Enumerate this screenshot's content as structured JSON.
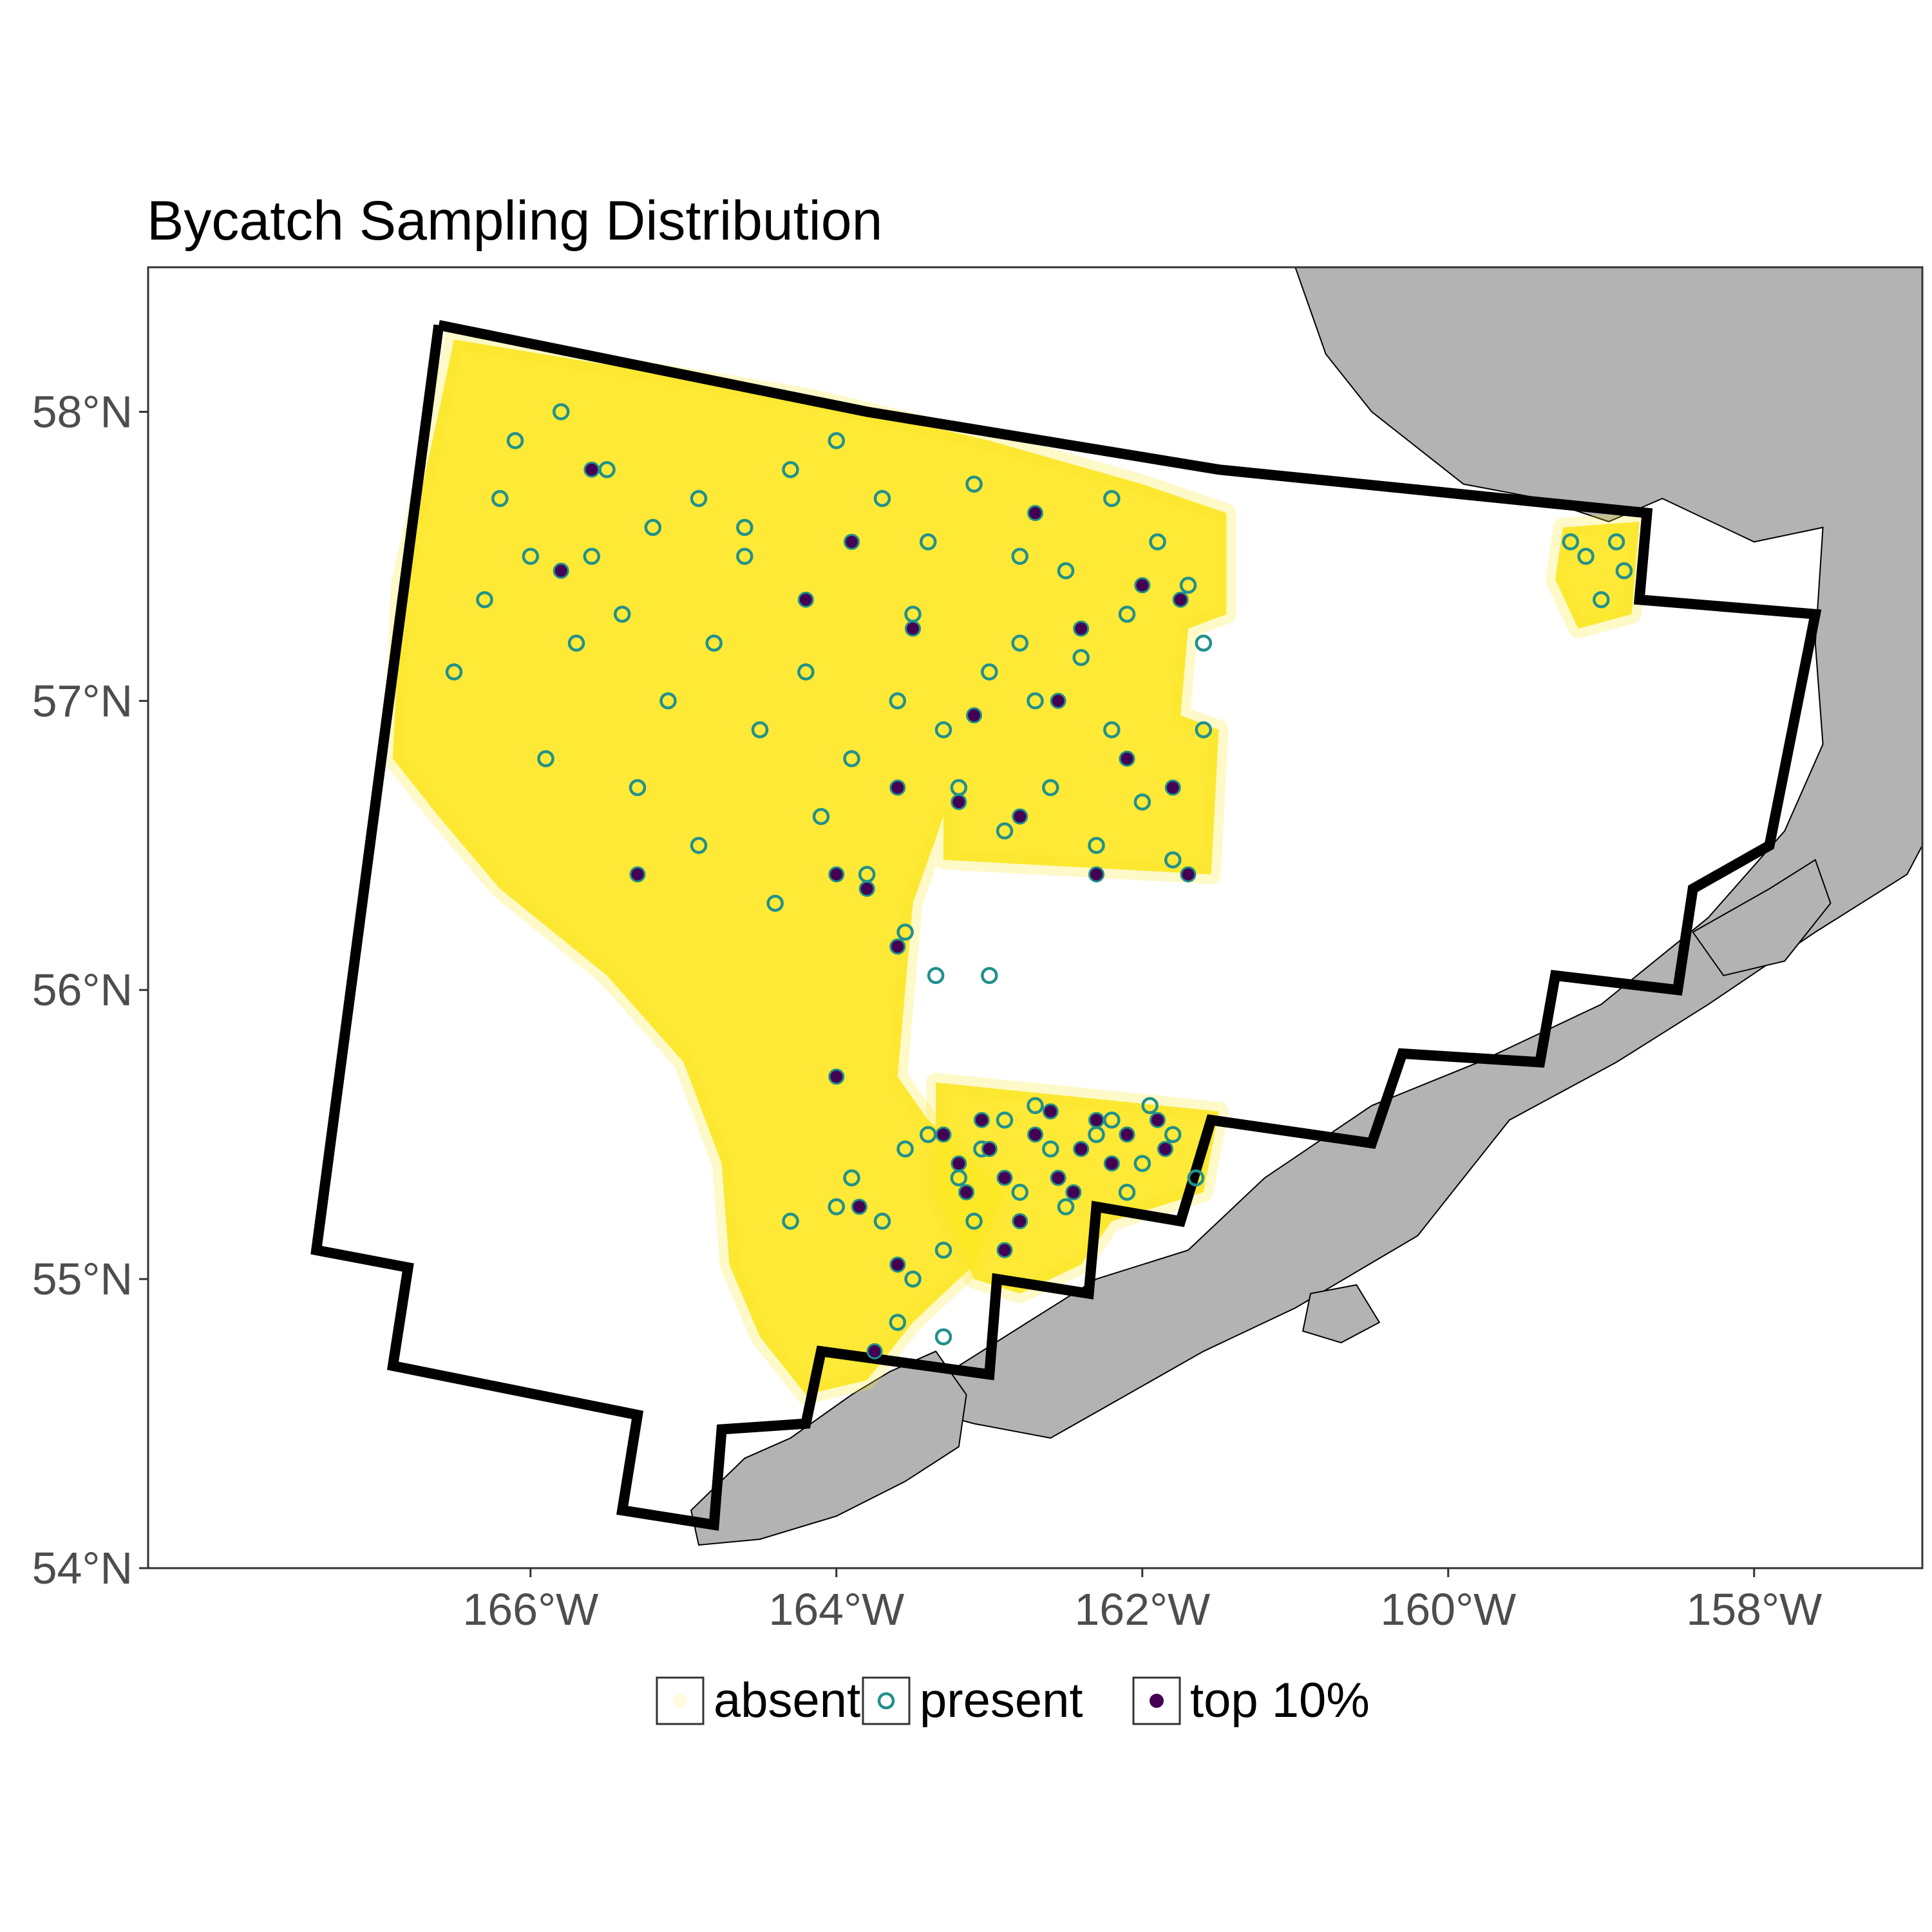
{
  "title": "Bycatch Sampling Distribution",
  "colors": {
    "absent": "#fde725",
    "present": "#21918c",
    "top": "#440154",
    "land": "#b3b3b3",
    "boundary": "#000000",
    "axis_text": "#4d4d4d"
  },
  "chart_data": {
    "type": "scatter",
    "projection": "map",
    "xlim": [
      -168.5,
      -156.9
    ],
    "ylim": [
      54.0,
      58.5
    ],
    "x_ticks": [
      -166,
      -164,
      -162,
      -160,
      -158
    ],
    "y_ticks": [
      54,
      55,
      56,
      57,
      58
    ],
    "x_tick_labels": [
      "166°W",
      "164°W",
      "162°W",
      "160°W",
      "158°W"
    ],
    "y_tick_labels": [
      "54°N",
      "55°N",
      "56°N",
      "57°N",
      "58°N"
    ],
    "legend": {
      "position": "bottom",
      "items": [
        {
          "key": "absent",
          "label": "absent"
        },
        {
          "key": "present",
          "label": "present"
        },
        {
          "key": "top",
          "label": "top 10%"
        }
      ]
    },
    "survey_boundary": [
      [
        -166.6,
        58.3
      ],
      [
        -163.8,
        58.0
      ],
      [
        -161.5,
        57.8
      ],
      [
        -158.7,
        57.65
      ],
      [
        -158.75,
        57.35
      ],
      [
        -157.6,
        57.3
      ],
      [
        -157.9,
        56.5
      ],
      [
        -158.4,
        56.35
      ],
      [
        -158.5,
        56.0
      ],
      [
        -159.3,
        56.05
      ],
      [
        -159.4,
        55.75
      ],
      [
        -160.3,
        55.78
      ],
      [
        -160.5,
        55.47
      ],
      [
        -161.55,
        55.55
      ],
      [
        -161.75,
        55.2
      ],
      [
        -162.3,
        55.25
      ],
      [
        -162.35,
        54.95
      ],
      [
        -162.95,
        55.0
      ],
      [
        -163.0,
        54.67
      ],
      [
        -164.1,
        54.75
      ],
      [
        -164.2,
        54.5
      ],
      [
        -164.75,
        54.48
      ],
      [
        -164.8,
        54.15
      ],
      [
        -165.4,
        54.2
      ],
      [
        -165.3,
        54.53
      ],
      [
        -166.9,
        54.7
      ],
      [
        -166.8,
        55.04
      ],
      [
        -167.4,
        55.1
      ],
      [
        -166.6,
        58.3
      ]
    ],
    "land_polygons": [
      {
        "name": "alaska-mainland",
        "points": [
          [
            -161.0,
            58.5
          ],
          [
            -160.8,
            58.2
          ],
          [
            -160.5,
            58.0
          ],
          [
            -159.9,
            57.75
          ],
          [
            -159.4,
            57.7
          ],
          [
            -158.95,
            57.62
          ],
          [
            -158.6,
            57.7
          ],
          [
            -158.0,
            57.55
          ],
          [
            -157.55,
            57.6
          ],
          [
            -157.6,
            57.2
          ],
          [
            -157.55,
            56.85
          ],
          [
            -157.8,
            56.55
          ],
          [
            -158.3,
            56.25
          ],
          [
            -159.0,
            55.95
          ],
          [
            -159.8,
            55.75
          ],
          [
            -160.5,
            55.6
          ],
          [
            -161.2,
            55.35
          ],
          [
            -161.7,
            55.1
          ],
          [
            -162.3,
            55.0
          ],
          [
            -162.75,
            54.85
          ],
          [
            -163.2,
            54.7
          ],
          [
            -163.45,
            54.55
          ],
          [
            -163.1,
            54.5
          ],
          [
            -162.6,
            54.45
          ],
          [
            -162.1,
            54.6
          ],
          [
            -161.6,
            54.75
          ],
          [
            -161.0,
            54.9
          ],
          [
            -160.2,
            55.15
          ],
          [
            -159.6,
            55.55
          ],
          [
            -158.9,
            55.75
          ],
          [
            -158.3,
            55.95
          ],
          [
            -157.6,
            56.2
          ],
          [
            -157.0,
            56.4
          ],
          [
            -156.9,
            56.5
          ],
          [
            -156.9,
            58.5
          ]
        ]
      },
      {
        "name": "unimak-island",
        "points": [
          [
            -164.95,
            54.2
          ],
          [
            -164.6,
            54.38
          ],
          [
            -164.3,
            54.45
          ],
          [
            -163.9,
            54.6
          ],
          [
            -163.65,
            54.68
          ],
          [
            -163.35,
            54.75
          ],
          [
            -163.15,
            54.6
          ],
          [
            -163.2,
            54.42
          ],
          [
            -163.55,
            54.3
          ],
          [
            -164.0,
            54.18
          ],
          [
            -164.5,
            54.1
          ],
          [
            -164.9,
            54.08
          ]
        ]
      },
      {
        "name": "shumagin-islands",
        "points": [
          [
            -160.9,
            54.95
          ],
          [
            -160.6,
            54.98
          ],
          [
            -160.45,
            54.85
          ],
          [
            -160.7,
            54.78
          ],
          [
            -160.95,
            54.82
          ]
        ]
      },
      {
        "name": "kodiak-area",
        "points": [
          [
            -158.4,
            56.2
          ],
          [
            -157.9,
            56.35
          ],
          [
            -157.6,
            56.45
          ],
          [
            -157.5,
            56.3
          ],
          [
            -157.8,
            56.1
          ],
          [
            -158.2,
            56.05
          ]
        ]
      }
    ],
    "absent_regions": [
      {
        "name": "west-main",
        "points": [
          [
            -166.5,
            58.25
          ],
          [
            -164.2,
            58.05
          ],
          [
            -163.0,
            57.9
          ],
          [
            -162.0,
            57.75
          ],
          [
            -161.45,
            57.65
          ],
          [
            -161.45,
            57.3
          ],
          [
            -161.7,
            57.25
          ],
          [
            -161.75,
            56.95
          ],
          [
            -161.5,
            56.9
          ],
          [
            -161.55,
            56.4
          ],
          [
            -163.3,
            56.45
          ],
          [
            -163.3,
            56.6
          ],
          [
            -163.5,
            56.3
          ],
          [
            -163.55,
            56.0
          ],
          [
            -163.6,
            55.7
          ],
          [
            -163.4,
            55.55
          ],
          [
            -163.2,
            55.45
          ],
          [
            -162.9,
            55.3
          ],
          [
            -163.1,
            55.05
          ],
          [
            -163.5,
            54.85
          ],
          [
            -163.8,
            54.65
          ],
          [
            -164.2,
            54.6
          ],
          [
            -164.5,
            54.8
          ],
          [
            -164.7,
            55.05
          ],
          [
            -164.75,
            55.4
          ],
          [
            -165.0,
            55.75
          ],
          [
            -165.5,
            56.05
          ],
          [
            -166.2,
            56.35
          ],
          [
            -166.6,
            56.6
          ],
          [
            -166.9,
            56.8
          ],
          [
            -166.85,
            57.4
          ],
          [
            -166.6,
            58.0
          ]
        ]
      },
      {
        "name": "south-block",
        "points": [
          [
            -163.35,
            55.68
          ],
          [
            -161.5,
            55.58
          ],
          [
            -161.6,
            55.3
          ],
          [
            -162.2,
            55.2
          ],
          [
            -162.4,
            55.05
          ],
          [
            -162.8,
            54.95
          ],
          [
            -163.1,
            55.0
          ],
          [
            -163.35,
            55.3
          ]
        ]
      },
      {
        "name": "east-patch",
        "points": [
          [
            -159.25,
            57.6
          ],
          [
            -158.75,
            57.62
          ],
          [
            -158.8,
            57.3
          ],
          [
            -159.15,
            57.25
          ],
          [
            -159.3,
            57.42
          ]
        ]
      }
    ],
    "present_points": [
      [
        -166.1,
        57.9
      ],
      [
        -165.8,
        58.0
      ],
      [
        -165.5,
        57.8
      ],
      [
        -165.2,
        57.6
      ],
      [
        -164.9,
        57.7
      ],
      [
        -164.6,
        57.5
      ],
      [
        -164.3,
        57.8
      ],
      [
        -164.0,
        57.9
      ],
      [
        -163.7,
        57.7
      ],
      [
        -163.4,
        57.55
      ],
      [
        -163.1,
        57.75
      ],
      [
        -162.8,
        57.5
      ],
      [
        -162.5,
        57.45
      ],
      [
        -162.2,
        57.7
      ],
      [
        -161.9,
        57.55
      ],
      [
        -161.7,
        57.4
      ],
      [
        -161.6,
        57.2
      ],
      [
        -162.1,
        57.3
      ],
      [
        -162.4,
        57.15
      ],
      [
        -162.7,
        57.0
      ],
      [
        -163.0,
        57.1
      ],
      [
        -163.3,
        56.9
      ],
      [
        -163.6,
        57.0
      ],
      [
        -163.9,
        56.8
      ],
      [
        -164.2,
        57.1
      ],
      [
        -164.5,
        56.9
      ],
      [
        -164.8,
        57.2
      ],
      [
        -165.1,
        57.0
      ],
      [
        -165.4,
        57.3
      ],
      [
        -165.7,
        57.2
      ],
      [
        -166.0,
        57.5
      ],
      [
        -166.3,
        57.35
      ],
      [
        -166.5,
        57.1
      ],
      [
        -165.9,
        56.8
      ],
      [
        -165.3,
        56.7
      ],
      [
        -164.9,
        56.5
      ],
      [
        -164.4,
        56.3
      ],
      [
        -164.1,
        56.6
      ],
      [
        -163.8,
        56.4
      ],
      [
        -163.55,
        56.2
      ],
      [
        -163.2,
        56.7
      ],
      [
        -162.9,
        56.55
      ],
      [
        -162.6,
        56.7
      ],
      [
        -162.3,
        56.5
      ],
      [
        -162.0,
        56.65
      ],
      [
        -161.8,
        56.45
      ],
      [
        -161.6,
        56.9
      ],
      [
        -162.2,
        56.9
      ],
      [
        -162.8,
        57.2
      ],
      [
        -163.5,
        57.3
      ],
      [
        -164.6,
        57.6
      ],
      [
        -165.6,
        57.5
      ],
      [
        -166.2,
        57.7
      ],
      [
        -163.0,
        56.05
      ],
      [
        -163.35,
        56.05
      ],
      [
        -163.4,
        55.5
      ],
      [
        -163.2,
        55.35
      ],
      [
        -162.9,
        55.55
      ],
      [
        -162.6,
        55.45
      ],
      [
        -162.3,
        55.5
      ],
      [
        -162.0,
        55.4
      ],
      [
        -161.8,
        55.5
      ],
      [
        -161.65,
        55.35
      ],
      [
        -162.1,
        55.3
      ],
      [
        -162.5,
        55.25
      ],
      [
        -162.8,
        55.3
      ],
      [
        -163.1,
        55.2
      ],
      [
        -163.3,
        55.1
      ],
      [
        -163.5,
        55.0
      ],
      [
        -163.6,
        54.85
      ],
      [
        -163.3,
        54.8
      ],
      [
        -163.7,
        55.2
      ],
      [
        -163.9,
        55.35
      ],
      [
        -164.0,
        55.25
      ],
      [
        -163.55,
        55.45
      ],
      [
        -163.05,
        55.45
      ],
      [
        -162.7,
        55.6
      ],
      [
        -162.2,
        55.55
      ],
      [
        -161.95,
        55.6
      ],
      [
        -164.3,
        55.2
      ],
      [
        -159.1,
        57.5
      ],
      [
        -158.9,
        57.55
      ],
      [
        -159.0,
        57.35
      ],
      [
        -159.2,
        57.55
      ],
      [
        -158.85,
        57.45
      ]
    ],
    "top_points": [
      [
        -165.6,
        57.8
      ],
      [
        -165.8,
        57.45
      ],
      [
        -163.9,
        57.55
      ],
      [
        -164.2,
        57.35
      ],
      [
        -163.5,
        57.25
      ],
      [
        -162.7,
        57.65
      ],
      [
        -162.4,
        57.25
      ],
      [
        -162.0,
        57.4
      ],
      [
        -161.75,
        57.35
      ],
      [
        -162.55,
        57.0
      ],
      [
        -163.1,
        56.95
      ],
      [
        -163.6,
        56.7
      ],
      [
        -162.8,
        56.6
      ],
      [
        -162.1,
        56.8
      ],
      [
        -161.8,
        56.7
      ],
      [
        -161.7,
        56.4
      ],
      [
        -162.3,
        56.4
      ],
      [
        -163.2,
        56.65
      ],
      [
        -164.0,
        56.4
      ],
      [
        -163.8,
        56.35
      ],
      [
        -163.6,
        56.15
      ],
      [
        -165.3,
        56.4
      ],
      [
        -164.0,
        55.7
      ],
      [
        -163.3,
        55.5
      ],
      [
        -163.0,
        55.45
      ],
      [
        -162.7,
        55.5
      ],
      [
        -162.4,
        55.45
      ],
      [
        -162.1,
        55.5
      ],
      [
        -161.85,
        55.45
      ],
      [
        -162.9,
        55.35
      ],
      [
        -162.55,
        55.35
      ],
      [
        -162.2,
        55.4
      ],
      [
        -163.15,
        55.3
      ],
      [
        -162.8,
        55.2
      ],
      [
        -162.45,
        55.3
      ],
      [
        -163.05,
        55.55
      ],
      [
        -162.6,
        55.58
      ],
      [
        -162.3,
        55.55
      ],
      [
        -161.9,
        55.55
      ],
      [
        -163.2,
        55.4
      ],
      [
        -162.9,
        55.1
      ],
      [
        -163.6,
        55.05
      ],
      [
        -163.75,
        54.75
      ],
      [
        -163.85,
        55.25
      ]
    ]
  }
}
